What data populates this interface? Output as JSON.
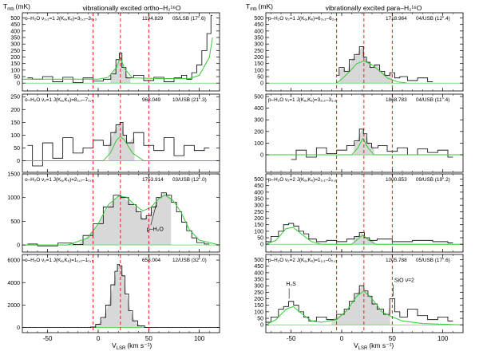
{
  "figure": {
    "y_unit_label": "T",
    "y_unit_sub": "mb",
    "y_unit_suffix": "(mK)",
    "x_unit_label": "V",
    "x_unit_sub": "LSR",
    "x_unit_suffix": "(km s⁻¹)",
    "left_title": "vibrationally excited ortho–H₂¹⁶O",
    "right_title": "vibrationally excited para–H₂¹⁶O"
  },
  "colors": {
    "spectrum": "#000000",
    "fit": "#33cc33",
    "fill": "#d8d8d8",
    "vline": "#ff0000"
  },
  "chart_data": [
    {
      "id": "L1",
      "type": "line",
      "column": "left",
      "row": 0,
      "label": "o–H₂O ν₁,₂=1 J(Kₐ,Kₑ)=3₁,₂–3₀,₃",
      "freq": "1194.829",
      "info": "05/LSB (17″.6)",
      "xlim": [
        -75,
        120
      ],
      "ylim": [
        -60,
        540
      ],
      "xticks": [
        -50,
        0,
        50,
        100
      ],
      "yticks": [
        0,
        50,
        100,
        150,
        200,
        250,
        300,
        350,
        400,
        450,
        500
      ],
      "vlines": [
        -5,
        22,
        50
      ],
      "spectrum_points": [
        [
          -70,
          40
        ],
        [
          -60,
          30
        ],
        [
          -50,
          50
        ],
        [
          -40,
          10
        ],
        [
          -30,
          45
        ],
        [
          -20,
          5
        ],
        [
          -10,
          40
        ],
        [
          0,
          15
        ],
        [
          10,
          30
        ],
        [
          15,
          70
        ],
        [
          20,
          180
        ],
        [
          22,
          230
        ],
        [
          25,
          120
        ],
        [
          30,
          40
        ],
        [
          40,
          60
        ],
        [
          50,
          20
        ],
        [
          60,
          45
        ],
        [
          70,
          10
        ],
        [
          80,
          40
        ],
        [
          85,
          60
        ],
        [
          90,
          30
        ],
        [
          95,
          80
        ],
        [
          100,
          140
        ],
        [
          105,
          250
        ],
        [
          110,
          380
        ],
        [
          113,
          520
        ]
      ],
      "fit_points": [
        [
          -75,
          30
        ],
        [
          -50,
          30
        ],
        [
          0,
          30
        ],
        [
          10,
          45
        ],
        [
          18,
          120
        ],
        [
          22,
          200
        ],
        [
          26,
          110
        ],
        [
          34,
          40
        ],
        [
          60,
          35
        ],
        [
          90,
          35
        ],
        [
          100,
          60
        ],
        [
          110,
          200
        ],
        [
          113,
          350
        ]
      ],
      "fill_range": [
        12,
        32
      ]
    },
    {
      "id": "L2",
      "type": "line",
      "column": "left",
      "row": 1,
      "label": "o–H₂O ν₂=1 J(Kₐ,Kₑ)=8₂,₇–7₃,₄",
      "freq": "968.049",
      "info": "10/USB (21″.3)",
      "xlim": [
        -75,
        120
      ],
      "ylim": [
        -45,
        260
      ],
      "xticks": [
        -50,
        0,
        50,
        100
      ],
      "yticks": [
        0,
        50,
        100,
        150,
        200,
        250
      ],
      "vlines": [
        -5,
        22,
        50
      ],
      "spectrum_points": [
        [
          -70,
          60
        ],
        [
          -60,
          -20
        ],
        [
          -50,
          70
        ],
        [
          -40,
          10
        ],
        [
          -30,
          90
        ],
        [
          -20,
          30
        ],
        [
          -10,
          50
        ],
        [
          0,
          80
        ],
        [
          10,
          60
        ],
        [
          15,
          110
        ],
        [
          20,
          140
        ],
        [
          23,
          150
        ],
        [
          26,
          100
        ],
        [
          30,
          70
        ],
        [
          40,
          110
        ],
        [
          50,
          60
        ],
        [
          60,
          40
        ],
        [
          70,
          90
        ],
        [
          80,
          20
        ],
        [
          90,
          60
        ],
        [
          100,
          40
        ],
        [
          110,
          50
        ]
      ],
      "fit_points": [
        [
          -75,
          0
        ],
        [
          5,
          0
        ],
        [
          12,
          30
        ],
        [
          18,
          80
        ],
        [
          22,
          95
        ],
        [
          26,
          80
        ],
        [
          34,
          30
        ],
        [
          45,
          0
        ],
        [
          120,
          0
        ]
      ],
      "fill_range": [
        10,
        36
      ]
    },
    {
      "id": "L3",
      "type": "line",
      "column": "left",
      "row": 2,
      "label": "o–H₂O ν₂=1 J(Kₐ,Kₑ)=2₁,₂–1₀,₁",
      "freq": "1753.914",
      "info": "03/USB (12″.0)",
      "xlim": [
        -75,
        120
      ],
      "ylim": [
        -150,
        1500
      ],
      "xticks": [
        -50,
        0,
        50,
        100
      ],
      "yticks": [
        0,
        500,
        1000,
        1500
      ],
      "vlines": [
        -5,
        22,
        50
      ],
      "annotation": "p–H₂O",
      "spectrum_points": [
        [
          -70,
          20
        ],
        [
          -50,
          -20
        ],
        [
          -30,
          40
        ],
        [
          -20,
          10
        ],
        [
          -10,
          200
        ],
        [
          0,
          450
        ],
        [
          10,
          800
        ],
        [
          20,
          1050
        ],
        [
          25,
          1000
        ],
        [
          35,
          850
        ],
        [
          40,
          700
        ],
        [
          45,
          550
        ],
        [
          50,
          620
        ],
        [
          55,
          800
        ],
        [
          60,
          1000
        ],
        [
          65,
          1100
        ],
        [
          70,
          1050
        ],
        [
          75,
          900
        ],
        [
          80,
          700
        ],
        [
          85,
          480
        ],
        [
          90,
          300
        ],
        [
          95,
          150
        ],
        [
          100,
          50
        ],
        [
          110,
          20
        ]
      ],
      "fit_points": [
        [
          -75,
          0
        ],
        [
          -30,
          0
        ],
        [
          -10,
          150
        ],
        [
          0,
          450
        ],
        [
          10,
          850
        ],
        [
          20,
          1030
        ],
        [
          28,
          1010
        ],
        [
          36,
          850
        ],
        [
          44,
          720
        ],
        [
          52,
          790
        ],
        [
          60,
          980
        ],
        [
          66,
          1050
        ],
        [
          74,
          940
        ],
        [
          82,
          690
        ],
        [
          90,
          330
        ],
        [
          100,
          100
        ],
        [
          120,
          0
        ]
      ],
      "fill_range": [
        -25,
        72
      ]
    },
    {
      "id": "L4",
      "type": "line",
      "column": "left",
      "row": 3,
      "label": "o–H₂O ν₂=1 J(Kₐ,Kₑ)=1₁,₀–1₀,₁",
      "freq": "658.004",
      "info": "12/USB (32″.0)",
      "xlim": [
        -75,
        120
      ],
      "ylim": [
        -450,
        6500
      ],
      "xticks": [
        -50,
        0,
        50,
        100
      ],
      "yticks": [
        0,
        2000,
        4000,
        6000
      ],
      "vlines": [
        -5,
        22,
        50
      ],
      "spectrum_points": [
        [
          -75,
          0
        ],
        [
          -10,
          0
        ],
        [
          -5,
          50
        ],
        [
          0,
          300
        ],
        [
          5,
          900
        ],
        [
          10,
          2000
        ],
        [
          15,
          3800
        ],
        [
          18,
          5000
        ],
        [
          20,
          5600
        ],
        [
          22,
          5500
        ],
        [
          25,
          4600
        ],
        [
          28,
          3000
        ],
        [
          32,
          1500
        ],
        [
          36,
          600
        ],
        [
          42,
          150
        ],
        [
          50,
          0
        ],
        [
          120,
          0
        ]
      ],
      "fit_points": [],
      "fill_range": [
        -5,
        48
      ]
    },
    {
      "id": "R1",
      "type": "line",
      "column": "right",
      "row": 0,
      "label": "p–H₂O ν₃=1 J(Kₐ,Kₑ)=6₃,₃–6₂,₄",
      "freq": "1718.964",
      "info": "04/USB (12″.4)",
      "xlim": [
        -75,
        120
      ],
      "ylim": [
        -60,
        540
      ],
      "xticks": [
        -50,
        0,
        50,
        100
      ],
      "yticks": [
        0,
        50,
        100,
        150,
        200,
        250,
        300,
        350,
        400,
        450,
        500
      ],
      "vlines": [
        -5,
        22,
        50
      ],
      "spectrum_points": [
        [
          -5,
          60
        ],
        [
          0,
          120
        ],
        [
          5,
          90
        ],
        [
          10,
          180
        ],
        [
          15,
          220
        ],
        [
          20,
          280
        ],
        [
          23,
          200
        ],
        [
          26,
          160
        ],
        [
          30,
          120
        ],
        [
          35,
          140
        ],
        [
          40,
          90
        ],
        [
          45,
          60
        ],
        [
          50,
          80
        ],
        [
          55,
          40
        ],
        [
          60,
          50
        ],
        [
          70,
          20
        ],
        [
          80,
          40
        ],
        [
          90,
          10
        ]
      ],
      "fit_points": [
        [
          -5,
          0
        ],
        [
          0,
          30
        ],
        [
          8,
          90
        ],
        [
          15,
          150
        ],
        [
          22,
          170
        ],
        [
          30,
          140
        ],
        [
          38,
          90
        ],
        [
          45,
          40
        ],
        [
          55,
          10
        ],
        [
          65,
          0
        ]
      ],
      "fill_range": [
        -2,
        50
      ]
    },
    {
      "id": "R2",
      "type": "line",
      "column": "right",
      "row": 1,
      "label": "p–H₂O ν₁=1 J(Kₐ,Kₑ)=3₂,₂–3₁,₃",
      "freq": "1868.783",
      "info": "04/USB (11″.4)",
      "xlim": [
        -75,
        120
      ],
      "ylim": [
        -150,
        520
      ],
      "xticks": [
        -50,
        0,
        50,
        100
      ],
      "yticks": [
        0,
        100,
        200,
        300,
        400,
        500
      ],
      "vlines": [
        -5,
        22,
        50
      ],
      "spectrum_points": [
        [
          -50,
          -40
        ],
        [
          -40,
          40
        ],
        [
          -30,
          -20
        ],
        [
          -20,
          60
        ],
        [
          -10,
          10
        ],
        [
          0,
          40
        ],
        [
          10,
          80
        ],
        [
          15,
          120
        ],
        [
          20,
          220
        ],
        [
          23,
          180
        ],
        [
          27,
          100
        ],
        [
          32,
          60
        ],
        [
          40,
          80
        ],
        [
          50,
          30
        ],
        [
          60,
          60
        ],
        [
          70,
          0
        ],
        [
          80,
          50
        ],
        [
          90,
          20
        ],
        [
          100,
          40
        ],
        [
          110,
          -20
        ]
      ],
      "fit_points": [
        [
          -75,
          0
        ],
        [
          10,
          0
        ],
        [
          16,
          60
        ],
        [
          21,
          140
        ],
        [
          26,
          60
        ],
        [
          32,
          0
        ],
        [
          120,
          0
        ]
      ],
      "fill_range": [
        12,
        32
      ]
    },
    {
      "id": "R3",
      "type": "line",
      "column": "right",
      "row": 2,
      "label": "p–H₂O ν₂=2 J(Kₐ,Kₑ)=2₁,₁–2₀,₂",
      "freq": "1000.853",
      "info": "09/USB (19″.2)",
      "xlim": [
        -75,
        120
      ],
      "ylim": [
        -60,
        540
      ],
      "xticks": [
        -50,
        0,
        50,
        100
      ],
      "yticks": [
        0,
        50,
        100,
        150,
        200,
        250,
        300,
        350,
        400,
        450,
        500
      ],
      "vlines": [
        -5,
        22,
        50
      ],
      "spectrum_points": [
        [
          -75,
          20
        ],
        [
          -65,
          60
        ],
        [
          -60,
          100
        ],
        [
          -55,
          150
        ],
        [
          -50,
          160
        ],
        [
          -45,
          140
        ],
        [
          -40,
          100
        ],
        [
          -35,
          80
        ],
        [
          -30,
          40
        ],
        [
          -20,
          20
        ],
        [
          -10,
          30
        ],
        [
          0,
          20
        ],
        [
          10,
          40
        ],
        [
          15,
          60
        ],
        [
          20,
          90
        ],
        [
          25,
          50
        ],
        [
          30,
          30
        ],
        [
          40,
          40
        ],
        [
          60,
          20
        ],
        [
          80,
          30
        ],
        [
          100,
          20
        ],
        [
          110,
          10
        ]
      ],
      "fit_points": [
        [
          -75,
          0
        ],
        [
          -65,
          30
        ],
        [
          -55,
          120
        ],
        [
          -48,
          130
        ],
        [
          -40,
          80
        ],
        [
          -30,
          20
        ],
        [
          -20,
          0
        ],
        [
          10,
          0
        ],
        [
          16,
          40
        ],
        [
          21,
          70
        ],
        [
          27,
          30
        ],
        [
          34,
          0
        ],
        [
          120,
          0
        ]
      ],
      "fill_range": [
        12,
        32
      ]
    },
    {
      "id": "R4",
      "type": "line",
      "column": "right",
      "row": 3,
      "label": "p–H₂O ν₂=2 J(Kₐ,Kₑ)=1₁,₁–0₀,₀",
      "freq": "1205.788",
      "info": "05/USB (17″.6)",
      "xlim": [
        -75,
        120
      ],
      "ylim": [
        -60,
        540
      ],
      "xticks": [
        -50,
        0,
        50,
        100
      ],
      "yticks": [
        0,
        50,
        100,
        150,
        200,
        250,
        300,
        350,
        400,
        450,
        500
      ],
      "vlines": [
        -5,
        22,
        50
      ],
      "annotations": [
        "H₂S",
        "SiO ν=2"
      ],
      "spectrum_points": [
        [
          -75,
          20
        ],
        [
          -65,
          60
        ],
        [
          -60,
          120
        ],
        [
          -55,
          140
        ],
        [
          -50,
          180
        ],
        [
          -45,
          150
        ],
        [
          -40,
          100
        ],
        [
          -35,
          60
        ],
        [
          -30,
          30
        ],
        [
          -20,
          60
        ],
        [
          -10,
          40
        ],
        [
          0,
          80
        ],
        [
          5,
          120
        ],
        [
          10,
          180
        ],
        [
          15,
          240
        ],
        [
          20,
          300
        ],
        [
          24,
          260
        ],
        [
          28,
          220
        ],
        [
          32,
          160
        ],
        [
          38,
          120
        ],
        [
          45,
          80
        ],
        [
          50,
          200
        ],
        [
          55,
          100
        ],
        [
          60,
          60
        ],
        [
          70,
          120
        ],
        [
          80,
          70
        ],
        [
          90,
          40
        ],
        [
          100,
          60
        ],
        [
          110,
          30
        ]
      ],
      "fit_points": [
        [
          -75,
          0
        ],
        [
          -65,
          40
        ],
        [
          -55,
          120
        ],
        [
          -48,
          140
        ],
        [
          -40,
          90
        ],
        [
          -30,
          30
        ],
        [
          -20,
          20
        ],
        [
          -5,
          40
        ],
        [
          5,
          110
        ],
        [
          15,
          220
        ],
        [
          22,
          260
        ],
        [
          30,
          200
        ],
        [
          40,
          100
        ],
        [
          50,
          60
        ],
        [
          60,
          30
        ],
        [
          80,
          10
        ],
        [
          120,
          0
        ]
      ],
      "fill_range": [
        -10,
        48
      ]
    }
  ]
}
